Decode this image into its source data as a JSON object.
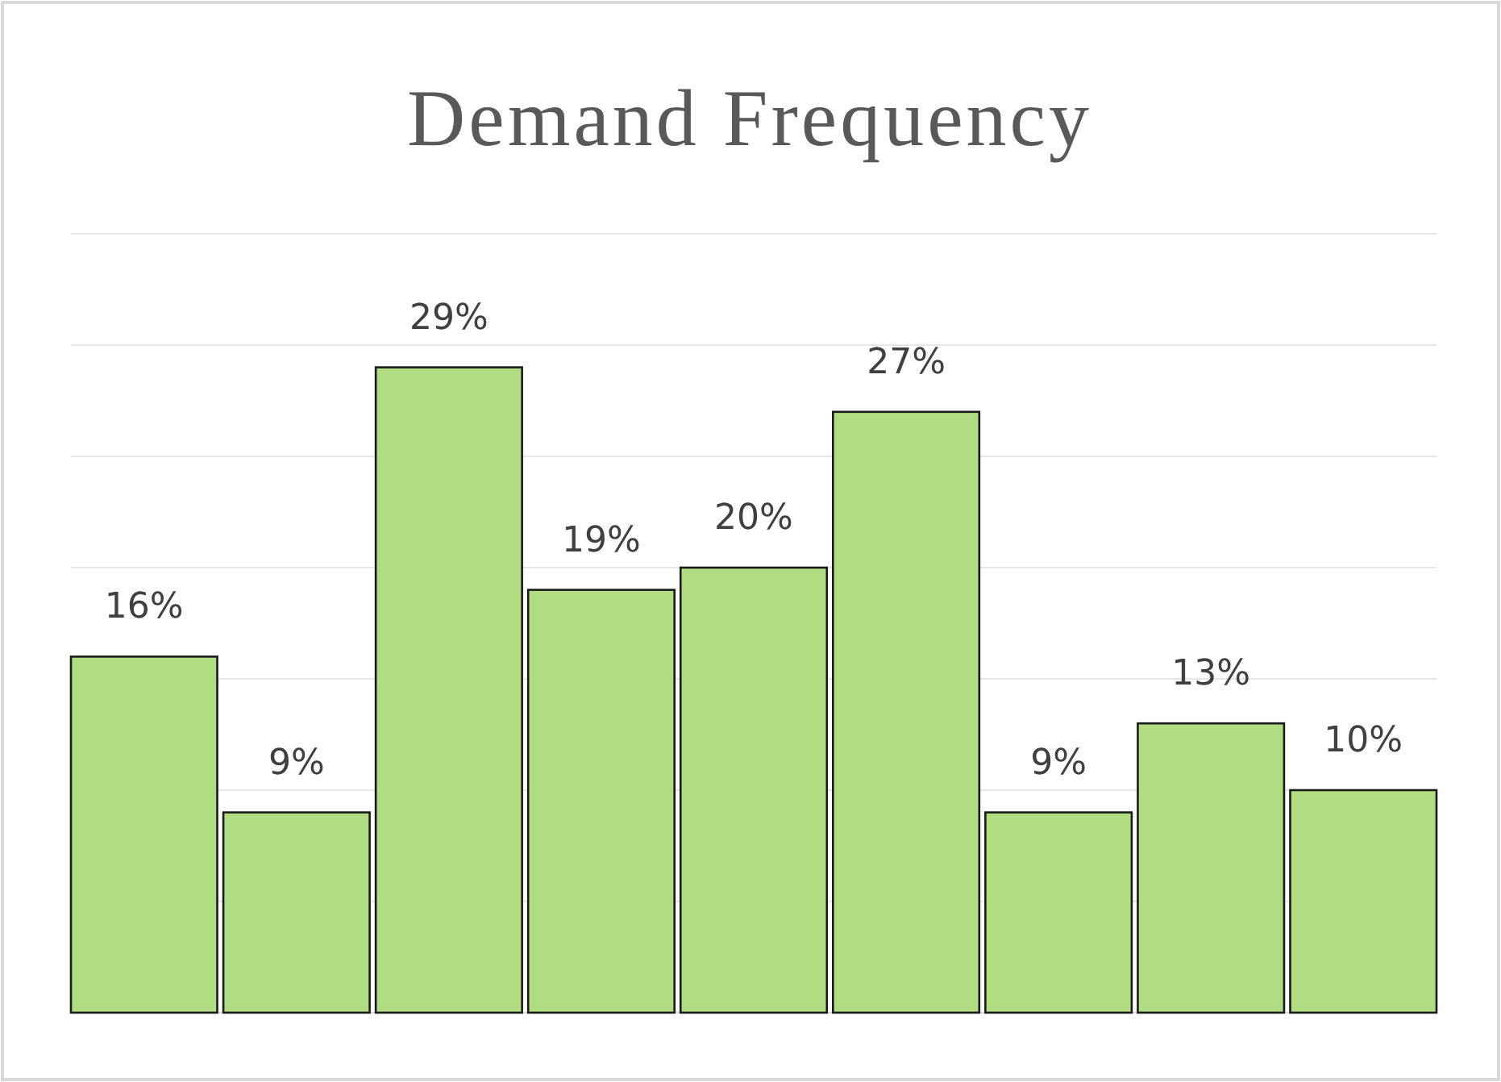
{
  "chart_data": {
    "type": "bar",
    "title": "Demand Frequency",
    "categories": [
      null,
      null,
      null,
      null,
      null,
      null,
      null,
      null,
      null
    ],
    "values": [
      16,
      9,
      29,
      19,
      20,
      27,
      9,
      13,
      10
    ],
    "value_labels": [
      "16%",
      "9%",
      "29%",
      "19%",
      "20%",
      "27%",
      "9%",
      "13%",
      "10%"
    ],
    "color": "#b1dd82",
    "ylim": [
      0,
      35
    ],
    "yticks": [
      {
        "value": 0,
        "label": null
      },
      {
        "value": 5,
        "label": null
      },
      {
        "value": 10,
        "label": null
      },
      {
        "value": 15,
        "label": null
      },
      {
        "value": 20,
        "label": null
      },
      {
        "value": 25,
        "label": null
      },
      {
        "value": 30,
        "label": null
      },
      {
        "value": 35,
        "label": null
      }
    ],
    "grid": "y"
  }
}
